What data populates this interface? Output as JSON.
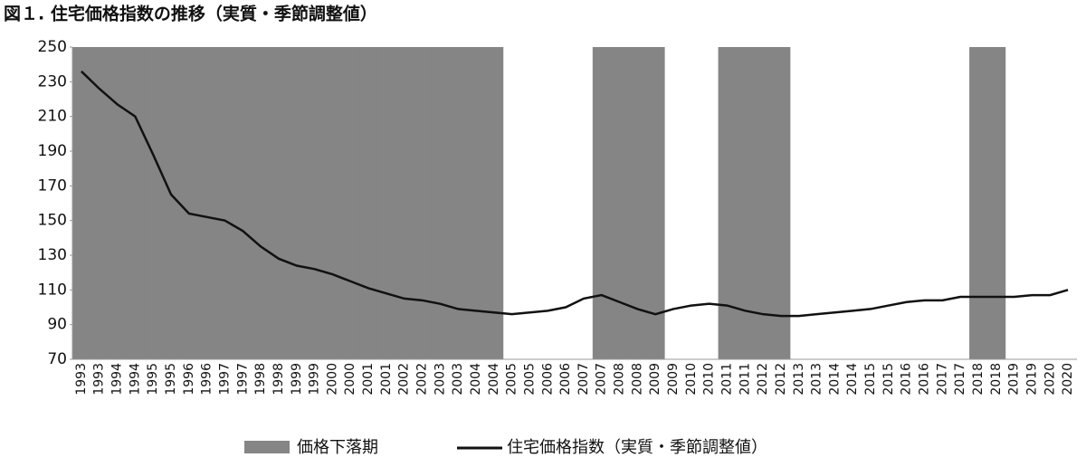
{
  "chart_data": {
    "type": "line",
    "title": "図１. 住宅価格指数の推移（実質・季節調整値）",
    "categories": [
      "1993",
      "1993",
      "1994",
      "1994",
      "1995",
      "1995",
      "1996",
      "1996",
      "1997",
      "1997",
      "1998",
      "1998",
      "1999",
      "1999",
      "2000",
      "2000",
      "2001",
      "2001",
      "2002",
      "2002",
      "2003",
      "2003",
      "2004",
      "2004",
      "2005",
      "2005",
      "2006",
      "2006",
      "2007",
      "2007",
      "2008",
      "2008",
      "2009",
      "2009",
      "2010",
      "2010",
      "2011",
      "2011",
      "2012",
      "2012",
      "2013",
      "2013",
      "2014",
      "2014",
      "2015",
      "2015",
      "2016",
      "2016",
      "2017",
      "2017",
      "2018",
      "2018",
      "2019",
      "2019",
      "2020",
      "2020"
    ],
    "series": [
      {
        "name": "価格下落期",
        "type": "bar",
        "color": "#858585",
        "values": [
          250,
          250,
          250,
          250,
          250,
          250,
          250,
          250,
          250,
          250,
          250,
          250,
          250,
          250,
          250,
          250,
          250,
          250,
          250,
          250,
          250,
          250,
          250,
          250,
          null,
          null,
          null,
          null,
          null,
          250,
          250,
          250,
          250,
          null,
          null,
          null,
          250,
          250,
          250,
          250,
          null,
          null,
          null,
          null,
          null,
          null,
          null,
          null,
          null,
          null,
          250,
          250,
          null,
          null,
          null,
          null
        ]
      },
      {
        "name": "住宅価格指数（実質・季節調整値）",
        "type": "line",
        "color": "#111111",
        "values": [
          236,
          226,
          217,
          210,
          188,
          165,
          154,
          152,
          150,
          144,
          135,
          128,
          124,
          122,
          119,
          115,
          111,
          108,
          105,
          104,
          102,
          99,
          98,
          97,
          96,
          97,
          98,
          100,
          105,
          107,
          103,
          99,
          96,
          99,
          101,
          102,
          101,
          98,
          96,
          95,
          95,
          96,
          97,
          98,
          99,
          101,
          103,
          104,
          104,
          106,
          106,
          106,
          106,
          107,
          107,
          110
        ]
      }
    ],
    "ylim": [
      70,
      250
    ],
    "yticks": [
      70,
      90,
      110,
      130,
      150,
      170,
      190,
      210,
      230,
      250
    ]
  }
}
